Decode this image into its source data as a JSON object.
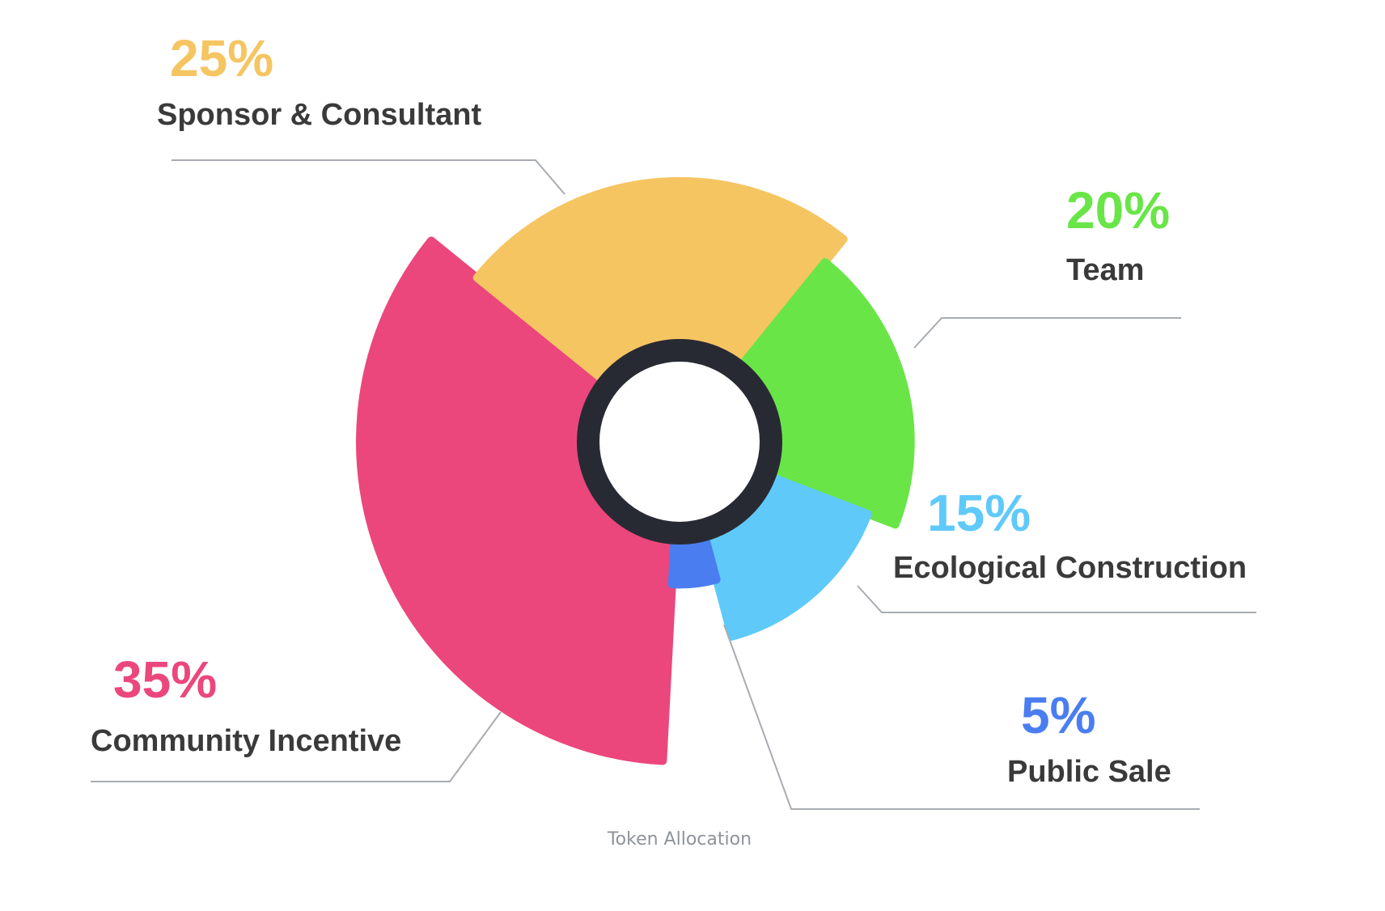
{
  "chart_data": {
    "type": "pie",
    "title": "Token Allocation",
    "slices": [
      {
        "name": "Community Incentive",
        "value": 35,
        "label": "35%",
        "color": "#EB477C"
      },
      {
        "name": "Sponsor & Consultant",
        "value": 25,
        "label": "25%",
        "color": "#F5C562"
      },
      {
        "name": "Team",
        "value": 20,
        "label": "20%",
        "color": "#69E548"
      },
      {
        "name": "Ecological Construction",
        "value": 15,
        "label": "15%",
        "color": "#5FCAF9"
      },
      {
        "name": "Public Sale",
        "value": 5,
        "label": "5%",
        "color": "#4A7DF0"
      }
    ],
    "center_ring_color": "#282A33",
    "caption_color": "#8F939A"
  }
}
